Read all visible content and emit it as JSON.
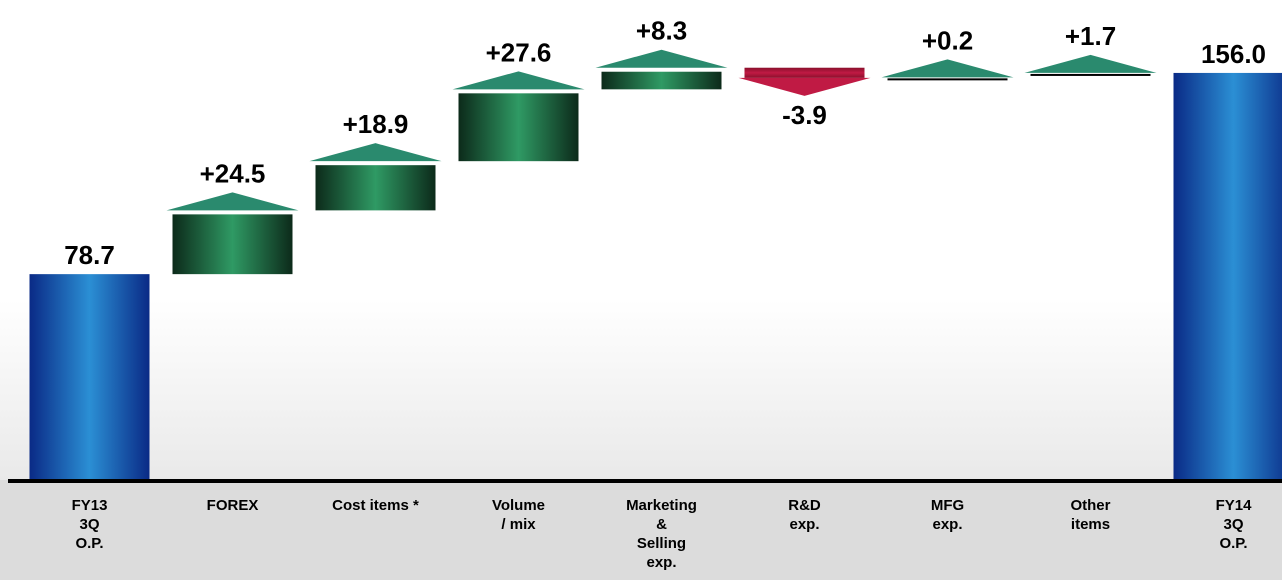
{
  "chart_data": {
    "type": "bar",
    "categories": [
      "FY13\n3Q\nO.P.",
      "FOREX",
      "Cost items *",
      "Volume\n/ mix",
      "Marketing\n&\nSelling\nexp.",
      "R&D\nexp.",
      "MFG\nexp.",
      "Other\nitems",
      "FY14\n3Q\nO.P."
    ],
    "values": [
      78.7,
      24.5,
      18.9,
      27.6,
      8.3,
      -3.9,
      0.2,
      1.7,
      156.0
    ],
    "labels": [
      "78.7",
      "+24.5",
      "+18.9",
      "+27.6",
      "+8.3",
      "-3.9",
      "+0.2",
      "+1.7",
      "156.0"
    ],
    "bar_kinds": [
      "total",
      "delta",
      "delta",
      "delta",
      "delta",
      "delta",
      "delta",
      "delta",
      "total"
    ],
    "title": "",
    "xlabel": "",
    "ylabel": "",
    "ylim": [
      0,
      160
    ],
    "grid": false,
    "legend": "none",
    "colors": {
      "total_dark": "#0a2a86",
      "total_light": "#2b8fd4",
      "increase_dark": "#0c2a1a",
      "increase_light": "#2f9a64",
      "arrow_up": "#2a8a6e",
      "decrease_dark": "#8a0f2b",
      "decrease_light": "#c01a44",
      "baseline": "#000000",
      "axis_band": "#dcdcdc"
    }
  }
}
